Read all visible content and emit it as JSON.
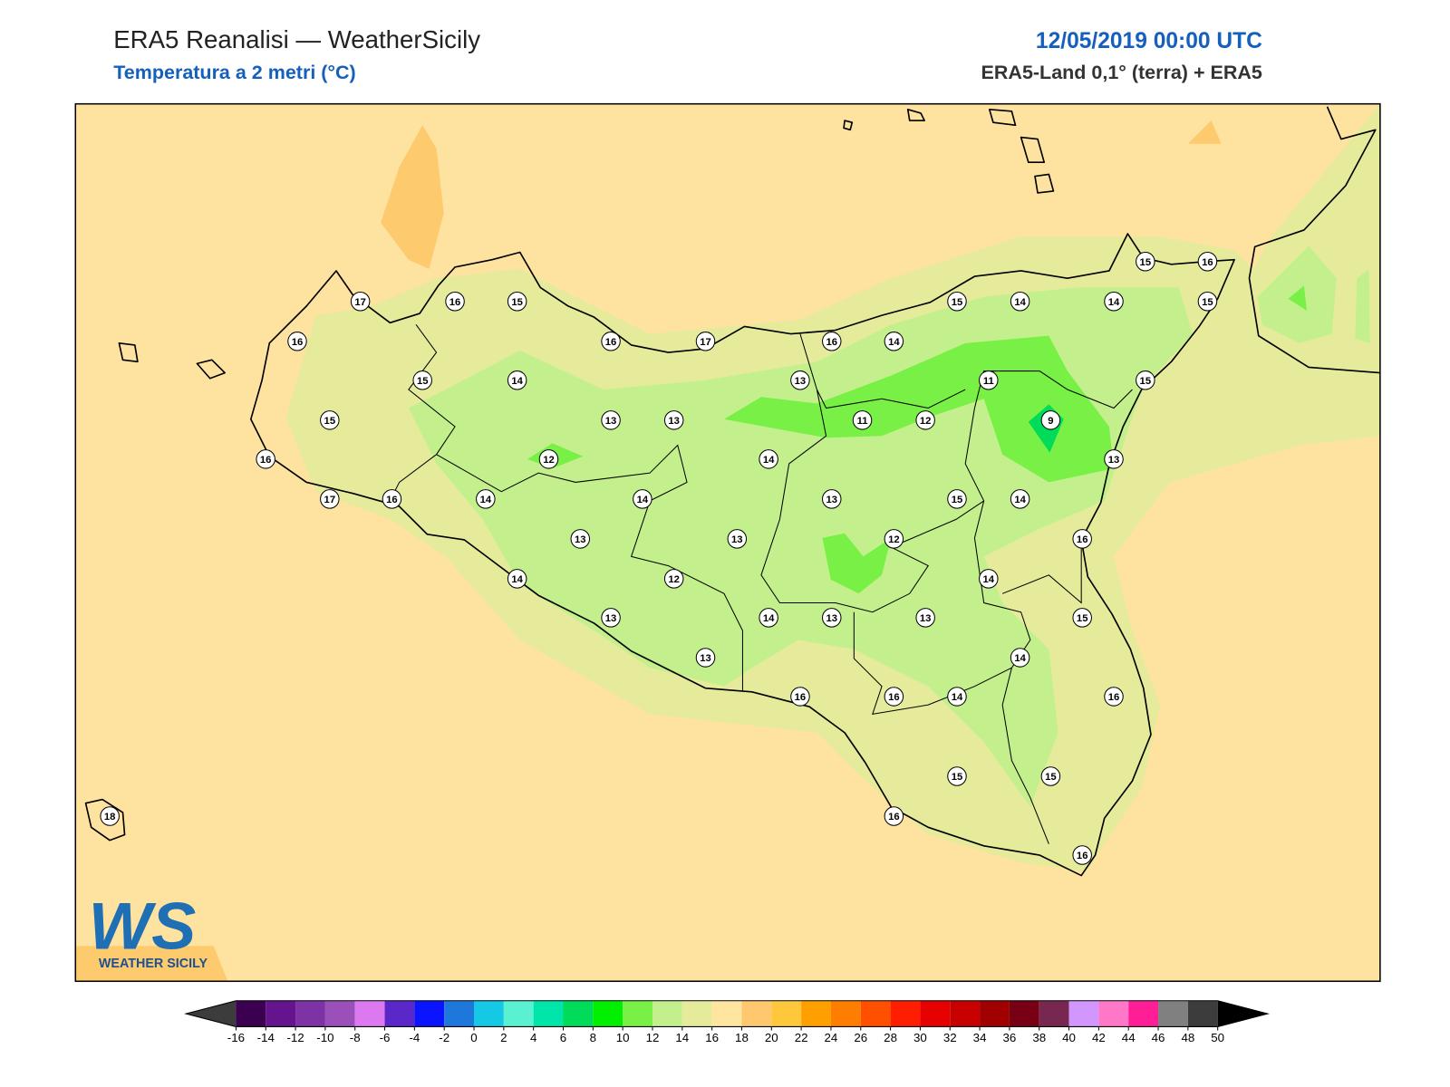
{
  "header": {
    "title": "ERA5 Reanalisi — WeatherSicily",
    "subtitle": "Temperatura a 2 metri (°C)",
    "datetime": "12/05/2019 00:00 UTC",
    "source": "ERA5-Land 0,1° (terra) + ERA5"
  },
  "stations": [
    17,
    16,
    15,
    16,
    15,
    14,
    15,
    16,
    17,
    16,
    16,
    17,
    13,
    13,
    12,
    14,
    14,
    13,
    14,
    12,
    13,
    13,
    13,
    14,
    13,
    16,
    14,
    11,
    12,
    11,
    15,
    14,
    14,
    15,
    16,
    15,
    15,
    9,
    13,
    14,
    15,
    13,
    12,
    16,
    14,
    14,
    13,
    13,
    15,
    14,
    16,
    16,
    16,
    14,
    15,
    15,
    16,
    16,
    18
  ],
  "colorbar": {
    "ticks": [
      -16,
      -14,
      -12,
      -10,
      -8,
      -6,
      -4,
      -2,
      0,
      2,
      4,
      6,
      8,
      10,
      12,
      14,
      16,
      18,
      20,
      22,
      24,
      26,
      28,
      30,
      32,
      34,
      36,
      38,
      40,
      42,
      44,
      46,
      48,
      50
    ],
    "colors": [
      "#3c0050",
      "#64148c",
      "#7d32a5",
      "#9b50b9",
      "#dc78f0",
      "#5a28c8",
      "#0a14ff",
      "#1e78dc",
      "#14c8e6",
      "#5af0d2",
      "#00e6aa",
      "#00dc5a",
      "#00f000",
      "#78f046",
      "#c3f08c",
      "#e6eb9b",
      "#ffe6a0",
      "#ffc86e",
      "#ffc83c",
      "#ffa000",
      "#ff7d00",
      "#ff5000",
      "#ff1e00",
      "#e60000",
      "#c80000",
      "#a00000",
      "#780014",
      "#782850",
      "#d296ff",
      "#ff78c8",
      "#ff1e96",
      "#808080",
      "#3c3c3c"
    ],
    "under_color": "#3c3c3c",
    "over_color": "#000000"
  },
  "logo": {
    "mark": "WS",
    "text": "WEATHER SICILY"
  }
}
